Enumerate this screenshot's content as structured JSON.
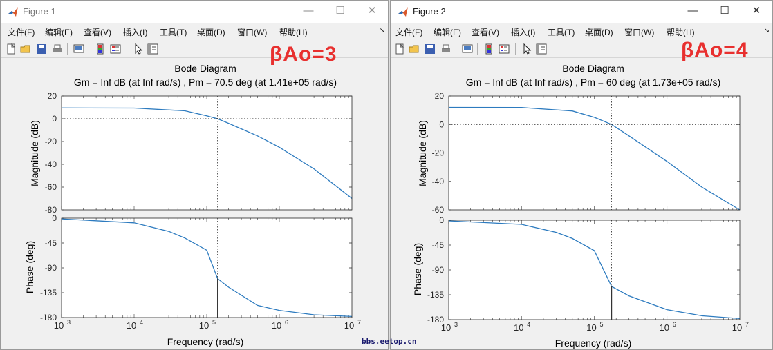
{
  "watermark": "bbs.eetop.cn",
  "menu_labels": [
    "文件(F)",
    "编辑(E)",
    "查看(V)",
    "插入(I)",
    "工具(T)",
    "桌面(D)",
    "窗口(W)",
    "帮助(H)"
  ],
  "windows": [
    {
      "title": "Figure 1",
      "annotation": "βAo=3",
      "plot": {
        "title": "Bode Diagram",
        "subtitle": "Gm = Inf dB (at Inf rad/s) ,  Pm = 70.5 deg (at 1.41e+05 rad/s)",
        "xlabel": "Frequency  (rad/s)",
        "mag_ylabel": "Magnitude (dB)",
        "phase_ylabel": "Phase (deg)"
      }
    },
    {
      "title": "Figure 2",
      "annotation": "βAo=4",
      "plot": {
        "title": "Bode Diagram",
        "subtitle": "Gm = Inf dB (at Inf rad/s) ,  Pm = 60 deg (at 1.73e+05 rad/s)",
        "xlabel": "Frequency  (rad/s)",
        "mag_ylabel": "Magnitude (dB)",
        "phase_ylabel": "Phase (deg)"
      }
    }
  ],
  "chart_data": [
    {
      "type": "line",
      "title": "Bode Diagram",
      "xscale": "log",
      "xlim": [
        1000,
        10000000
      ],
      "xticks": [
        1000,
        10000,
        100000,
        1000000,
        10000000
      ],
      "magnitude": {
        "ylim": [
          -80,
          20
        ],
        "yticks": [
          20,
          0,
          -20,
          -40,
          -60,
          -80
        ],
        "x": [
          1000,
          10000,
          50000,
          100000,
          141000,
          200000,
          500000,
          1000000,
          3000000,
          10000000
        ],
        "y": [
          9.5,
          9.4,
          7.0,
          2.6,
          0.0,
          -4.0,
          -15.0,
          -25.0,
          -44.0,
          -70.0
        ]
      },
      "phase": {
        "ylim": [
          -180,
          0
        ],
        "yticks": [
          0,
          -45,
          -90,
          -135,
          -180
        ],
        "x": [
          1000,
          10000,
          30000,
          50000,
          100000,
          141000,
          200000,
          500000,
          1000000,
          3000000,
          10000000
        ],
        "y": [
          -1.4,
          -8.5,
          -24,
          -36,
          -58,
          -109.5,
          -125,
          -158,
          -167,
          -175,
          -178
        ]
      },
      "crossover": {
        "freq": 141000,
        "phase": -109.5,
        "label": "Pm = 70.5 deg (at 1.41e+05 rad/s)"
      }
    },
    {
      "type": "line",
      "title": "Bode Diagram",
      "xscale": "log",
      "xlim": [
        1000,
        10000000
      ],
      "xticks": [
        1000,
        10000,
        100000,
        1000000,
        10000000
      ],
      "magnitude": {
        "ylim": [
          -60,
          20
        ],
        "yticks": [
          20,
          0,
          -20,
          -40,
          -60
        ],
        "x": [
          1000,
          10000,
          50000,
          100000,
          173000,
          300000,
          1000000,
          3000000,
          10000000
        ],
        "y": [
          12.0,
          11.9,
          9.5,
          5.0,
          0.0,
          -8.0,
          -26.0,
          -44.0,
          -60.0
        ]
      },
      "phase": {
        "ylim": [
          -180,
          0
        ],
        "yticks": [
          0,
          -45,
          -90,
          -135,
          -180
        ],
        "x": [
          1000,
          10000,
          30000,
          50000,
          100000,
          173000,
          300000,
          1000000,
          3000000,
          10000000
        ],
        "y": [
          -1.2,
          -7.5,
          -22,
          -33,
          -55,
          -120,
          -137,
          -162,
          -173,
          -178
        ]
      },
      "crossover": {
        "freq": 173000,
        "phase": -120,
        "label": "Pm = 60 deg (at 1.73e+05 rad/s)"
      }
    }
  ],
  "colors": {
    "curve": "#2d7bbf",
    "annotation": "#e8302f",
    "axes_bg": "#ffffff",
    "figure_bg": "#f0f0f0"
  }
}
